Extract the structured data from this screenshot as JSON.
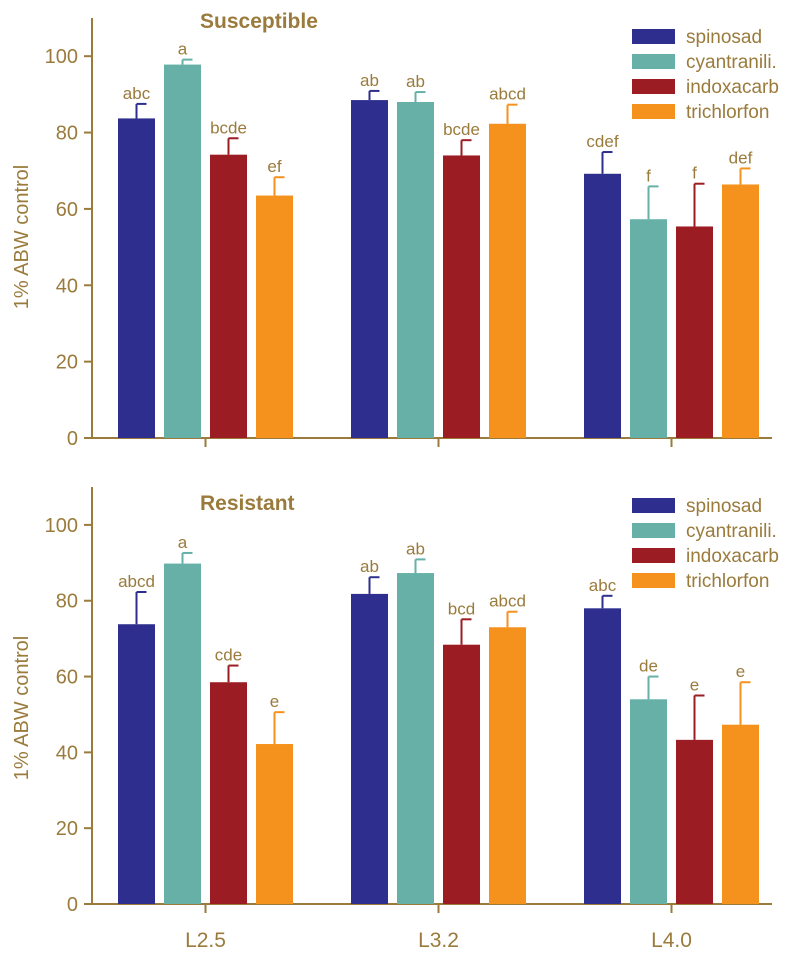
{
  "colors": {
    "axis": "#9a7b3c",
    "text": "#9a7b3c",
    "series": [
      "#2e2e8f",
      "#66b0a8",
      "#9b1c22",
      "#f5921e"
    ]
  },
  "chart_data": [
    {
      "type": "bar",
      "title": "Susceptible",
      "ylabel": "1% ABW control",
      "xlabel": "",
      "ylim": [
        0,
        110
      ],
      "yticks": [
        0,
        20,
        40,
        60,
        80,
        100
      ],
      "categories": [
        "L2.5",
        "L3.2",
        "L4.0"
      ],
      "show_category_labels": false,
      "legend_position": "top-right",
      "series": [
        {
          "name": "spinosad",
          "values": [
            83.7,
            88.5,
            69.2
          ],
          "errors": [
            3.8,
            2.4,
            5.7
          ],
          "letters": [
            "abc",
            "ab",
            "cdef"
          ]
        },
        {
          "name": "cyantranili.",
          "values": [
            97.8,
            88.0,
            57.3
          ],
          "errors": [
            1.3,
            2.6,
            8.6
          ],
          "letters": [
            "a",
            "ab",
            "f"
          ]
        },
        {
          "name": "indoxacarb",
          "values": [
            74.2,
            74.0,
            55.4
          ],
          "errors": [
            4.3,
            4.0,
            11.2
          ],
          "letters": [
            "bcde",
            "bcde",
            "f"
          ]
        },
        {
          "name": "trichlorfon",
          "values": [
            63.5,
            82.3,
            66.4
          ],
          "errors": [
            4.8,
            5.0,
            4.2
          ],
          "letters": [
            "ef",
            "abcd",
            "def"
          ]
        }
      ]
    },
    {
      "type": "bar",
      "title": "Resistant",
      "ylabel": "1% ABW control",
      "xlabel": "",
      "ylim": [
        0,
        110
      ],
      "yticks": [
        0,
        20,
        40,
        60,
        80,
        100
      ],
      "categories": [
        "L2.5",
        "L3.2",
        "L4.0"
      ],
      "show_category_labels": true,
      "legend_position": "top-right",
      "series": [
        {
          "name": "spinosad",
          "values": [
            73.8,
            81.8,
            78.0
          ],
          "errors": [
            8.5,
            4.4,
            3.3
          ],
          "letters": [
            "abcd",
            "ab",
            "abc"
          ]
        },
        {
          "name": "cyantranili.",
          "values": [
            89.8,
            87.3,
            54.0
          ],
          "errors": [
            2.8,
            3.6,
            6.0
          ],
          "letters": [
            "a",
            "ab",
            "de"
          ]
        },
        {
          "name": "indoxacarb",
          "values": [
            58.5,
            68.4,
            43.3
          ],
          "errors": [
            4.4,
            6.7,
            11.7
          ],
          "letters": [
            "cde",
            "bcd",
            "e"
          ]
        },
        {
          "name": "trichlorfon",
          "values": [
            42.2,
            73.0,
            47.3
          ],
          "errors": [
            8.4,
            4.1,
            11.2
          ],
          "letters": [
            "e",
            "abcd",
            "e"
          ]
        }
      ]
    }
  ]
}
